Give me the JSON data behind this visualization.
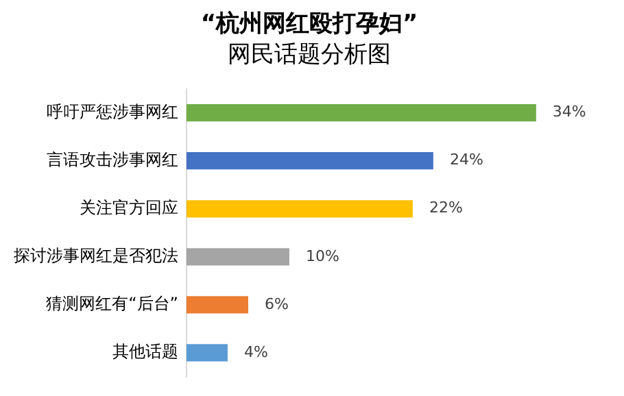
{
  "chart_data": {
    "type": "bar",
    "orientation": "horizontal",
    "title": "“杭州网红殴打孕妇”",
    "subtitle": "网民话题分析图",
    "categories": [
      "呼吁严惩涉事网红",
      "言语攻击涉事网红",
      "关注官方回应",
      "探讨涉事网红是否犯法",
      "猜测网红有“后台”",
      "其他话题"
    ],
    "values": [
      34,
      24,
      22,
      10,
      6,
      4
    ],
    "colors": [
      "#70ad47",
      "#4472c4",
      "#ffc000",
      "#a5a5a5",
      "#ed7d31",
      "#5b9bd5"
    ],
    "value_labels": [
      "34%",
      "24%",
      "22%",
      "10%",
      "6%",
      "4%"
    ],
    "legend": false
  }
}
